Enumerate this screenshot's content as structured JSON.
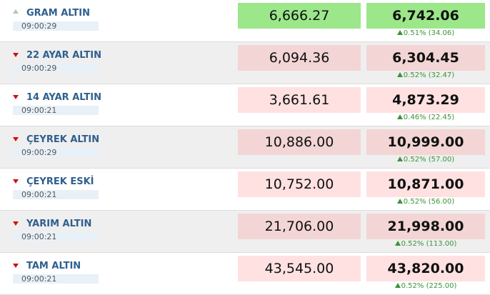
{
  "rows": [
    {
      "name": "GRAM ALTIN",
      "time": "09:00:29",
      "buy": "6,666.27",
      "sell": "6,742.06",
      "change": "0.51% (34.06)",
      "direction": "up"
    },
    {
      "name": "22 AYAR ALTIN",
      "time": "09:00:29",
      "buy": "6,094.36",
      "sell": "6,304.45",
      "change": "0.52% (32.47)",
      "direction": "down"
    },
    {
      "name": "14 AYAR ALTIN",
      "time": "09:00:21",
      "buy": "3,661.61",
      "sell": "4,873.29",
      "change": "0.46% (22.45)",
      "direction": "down"
    },
    {
      "name": "ÇEYREK ALTIN",
      "time": "09:00:29",
      "buy": "10,886.00",
      "sell": "10,999.00",
      "change": "0.52% (57.00)",
      "direction": "down"
    },
    {
      "name": "ÇEYREK ESKİ",
      "time": "09:00:21",
      "buy": "10,752.00",
      "sell": "10,871.00",
      "change": "0.52% (56.00)",
      "direction": "down"
    },
    {
      "name": "YARIM ALTIN",
      "time": "09:00:21",
      "buy": "21,706.00",
      "sell": "21,998.00",
      "change": "0.52% (113.00)",
      "direction": "down"
    },
    {
      "name": "TAM ALTIN",
      "time": "09:00:21",
      "buy": "43,545.00",
      "sell": "43,820.00",
      "change": "0.52% (225.00)",
      "direction": "down"
    }
  ]
}
